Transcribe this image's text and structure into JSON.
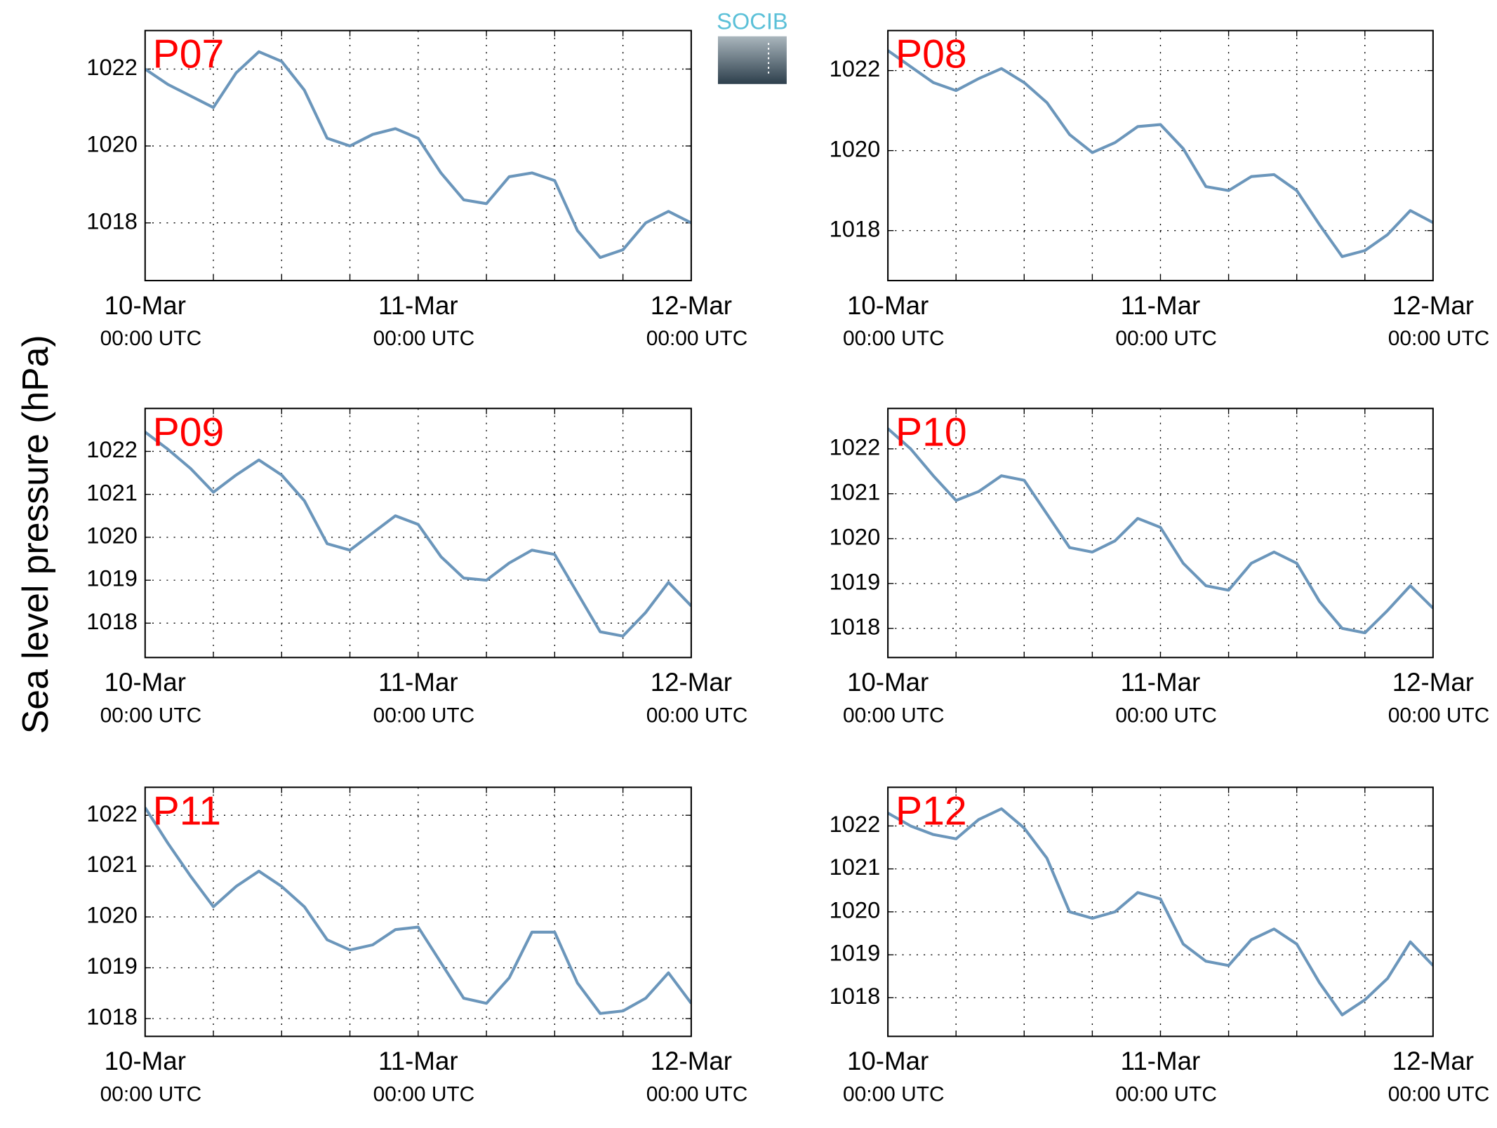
{
  "ylabel": "Sea level pressure (hPa)",
  "logo": "SOCIB",
  "chart_data": [
    {
      "type": "line",
      "title": "P07",
      "x": [
        0,
        2,
        4,
        6,
        8,
        10,
        12,
        14,
        16,
        18,
        20,
        22,
        24,
        26,
        28,
        30,
        32,
        34,
        36,
        38,
        40,
        42,
        44,
        46,
        48
      ],
      "xlim": [
        0,
        48
      ],
      "xticks": [
        {
          "value": 0,
          "label": "10-Mar",
          "sublabel": "00:00 UTC"
        },
        {
          "value": 24,
          "label": "11-Mar",
          "sublabel": "00:00 UTC"
        },
        {
          "value": 48,
          "label": "12-Mar",
          "sublabel": "00:00 UTC"
        }
      ],
      "xminor": [
        6,
        12,
        18,
        30,
        36,
        42
      ],
      "ylim": [
        1016.5,
        1023
      ],
      "yticks": [
        1018,
        1020,
        1022
      ],
      "grid": true,
      "series": [
        {
          "color": "#6b96bb",
          "values": [
            1022.0,
            1021.6,
            1021.3,
            1021.0,
            1021.9,
            1022.45,
            1022.2,
            1021.45,
            1020.2,
            1020.0,
            1020.3,
            1020.45,
            1020.2,
            1019.3,
            1018.6,
            1018.5,
            1019.2,
            1019.3,
            1019.1,
            1017.8,
            1017.1,
            1017.3,
            1018.0,
            1018.3,
            1018.0
          ]
        }
      ]
    },
    {
      "type": "line",
      "title": "P08",
      "x": [
        0,
        2,
        4,
        6,
        8,
        10,
        12,
        14,
        16,
        18,
        20,
        22,
        24,
        26,
        28,
        30,
        32,
        34,
        36,
        38,
        40,
        42,
        44,
        46,
        48
      ],
      "xlim": [
        0,
        48
      ],
      "xticks": [
        {
          "value": 0,
          "label": "10-Mar",
          "sublabel": "00:00 UTC"
        },
        {
          "value": 24,
          "label": "11-Mar",
          "sublabel": "00:00 UTC"
        },
        {
          "value": 48,
          "label": "12-Mar",
          "sublabel": "00:00 UTC"
        }
      ],
      "xminor": [
        6,
        12,
        18,
        30,
        36,
        42
      ],
      "ylim": [
        1016.75,
        1023
      ],
      "yticks": [
        1018,
        1020,
        1022
      ],
      "grid": true,
      "series": [
        {
          "color": "#6b96bb",
          "values": [
            1022.5,
            1022.1,
            1021.7,
            1021.5,
            1021.8,
            1022.05,
            1021.7,
            1021.2,
            1020.4,
            1019.95,
            1020.2,
            1020.6,
            1020.65,
            1020.05,
            1019.1,
            1019.0,
            1019.35,
            1019.4,
            1019.0,
            1018.15,
            1017.35,
            1017.5,
            1017.9,
            1018.5,
            1018.2
          ]
        }
      ]
    },
    {
      "type": "line",
      "title": "P09",
      "x": [
        0,
        2,
        4,
        6,
        8,
        10,
        12,
        14,
        16,
        18,
        20,
        22,
        24,
        26,
        28,
        30,
        32,
        34,
        36,
        38,
        40,
        42,
        44,
        46,
        48
      ],
      "xlim": [
        0,
        48
      ],
      "xticks": [
        {
          "value": 0,
          "label": "10-Mar",
          "sublabel": "00:00 UTC"
        },
        {
          "value": 24,
          "label": "11-Mar",
          "sublabel": "00:00 UTC"
        },
        {
          "value": 48,
          "label": "12-Mar",
          "sublabel": "00:00 UTC"
        }
      ],
      "xminor": [
        6,
        12,
        18,
        30,
        36,
        42
      ],
      "ylim": [
        1017.2,
        1023
      ],
      "yticks": [
        1018,
        1019,
        1020,
        1021,
        1022
      ],
      "grid": true,
      "series": [
        {
          "color": "#6b96bb",
          "values": [
            1022.45,
            1022.05,
            1021.6,
            1021.05,
            1021.45,
            1021.8,
            1021.45,
            1020.85,
            1019.85,
            1019.7,
            1020.1,
            1020.5,
            1020.3,
            1019.55,
            1019.05,
            1019.0,
            1019.4,
            1019.7,
            1019.6,
            1018.7,
            1017.8,
            1017.7,
            1018.25,
            1018.95,
            1018.4
          ]
        }
      ]
    },
    {
      "type": "line",
      "title": "P10",
      "x": [
        0,
        2,
        4,
        6,
        8,
        10,
        12,
        14,
        16,
        18,
        20,
        22,
        24,
        26,
        28,
        30,
        32,
        34,
        36,
        38,
        40,
        42,
        44,
        46,
        48
      ],
      "xlim": [
        0,
        48
      ],
      "xticks": [
        {
          "value": 0,
          "label": "10-Mar",
          "sublabel": "00:00 UTC"
        },
        {
          "value": 24,
          "label": "11-Mar",
          "sublabel": "00:00 UTC"
        },
        {
          "value": 48,
          "label": "12-Mar",
          "sublabel": "00:00 UTC"
        }
      ],
      "xminor": [
        6,
        12,
        18,
        30,
        36,
        42
      ],
      "ylim": [
        1017.35,
        1022.9
      ],
      "yticks": [
        1018,
        1019,
        1020,
        1021,
        1022
      ],
      "grid": true,
      "series": [
        {
          "color": "#6b96bb",
          "values": [
            1022.45,
            1022.0,
            1021.4,
            1020.85,
            1021.05,
            1021.4,
            1021.3,
            1020.55,
            1019.8,
            1019.7,
            1019.95,
            1020.45,
            1020.25,
            1019.45,
            1018.95,
            1018.85,
            1019.45,
            1019.7,
            1019.45,
            1018.6,
            1018.0,
            1017.9,
            1018.4,
            1018.95,
            1018.45
          ]
        }
      ]
    },
    {
      "type": "line",
      "title": "P11",
      "x": [
        0,
        2,
        4,
        6,
        8,
        10,
        12,
        14,
        16,
        18,
        20,
        22,
        24,
        26,
        28,
        30,
        32,
        34,
        36,
        38,
        40,
        42,
        44,
        46,
        48
      ],
      "xlim": [
        0,
        48
      ],
      "xticks": [
        {
          "value": 0,
          "label": "10-Mar",
          "sublabel": "00:00 UTC"
        },
        {
          "value": 24,
          "label": "11-Mar",
          "sublabel": "00:00 UTC"
        },
        {
          "value": 48,
          "label": "12-Mar",
          "sublabel": "00:00 UTC"
        }
      ],
      "xminor": [
        6,
        12,
        18,
        30,
        36,
        42
      ],
      "ylim": [
        1017.65,
        1022.55
      ],
      "yticks": [
        1018,
        1019,
        1020,
        1021,
        1022
      ],
      "grid": true,
      "series": [
        {
          "color": "#6b96bb",
          "values": [
            1022.15,
            1021.45,
            1020.8,
            1020.2,
            1020.6,
            1020.9,
            1020.6,
            1020.2,
            1019.55,
            1019.35,
            1019.45,
            1019.75,
            1019.8,
            1019.1,
            1018.4,
            1018.3,
            1018.8,
            1019.7,
            1019.7,
            1018.7,
            1018.1,
            1018.15,
            1018.4,
            1018.9,
            1018.3
          ]
        }
      ]
    },
    {
      "type": "line",
      "title": "P12",
      "x": [
        0,
        2,
        4,
        6,
        8,
        10,
        12,
        14,
        16,
        18,
        20,
        22,
        24,
        26,
        28,
        30,
        32,
        34,
        36,
        38,
        40,
        42,
        44,
        46,
        48
      ],
      "xlim": [
        0,
        48
      ],
      "xticks": [
        {
          "value": 0,
          "label": "10-Mar",
          "sublabel": "00:00 UTC"
        },
        {
          "value": 24,
          "label": "11-Mar",
          "sublabel": "00:00 UTC"
        },
        {
          "value": 48,
          "label": "12-Mar",
          "sublabel": "00:00 UTC"
        }
      ],
      "xminor": [
        6,
        12,
        18,
        30,
        36,
        42
      ],
      "ylim": [
        1017.1,
        1022.9
      ],
      "yticks": [
        1018,
        1019,
        1020,
        1021,
        1022
      ],
      "grid": true,
      "series": [
        {
          "color": "#6b96bb",
          "values": [
            1022.3,
            1022.0,
            1021.8,
            1021.7,
            1022.15,
            1022.4,
            1021.95,
            1021.25,
            1020.0,
            1019.85,
            1020.0,
            1020.45,
            1020.3,
            1019.25,
            1018.85,
            1018.75,
            1019.35,
            1019.6,
            1019.25,
            1018.35,
            1017.6,
            1017.95,
            1018.45,
            1019.3,
            1018.75
          ]
        }
      ]
    }
  ]
}
